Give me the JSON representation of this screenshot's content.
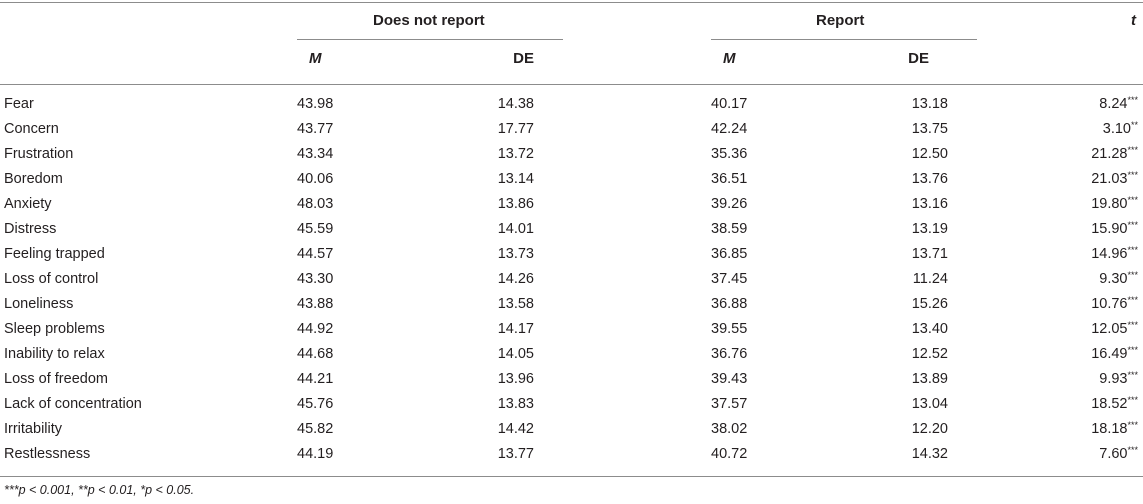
{
  "header": {
    "group1": "Does not report",
    "group2": "Report",
    "t_col": "t",
    "m": "M",
    "de": "DE"
  },
  "rows": [
    {
      "label": "Fear",
      "m1": "43.98",
      "de1": "14.38",
      "m2": "40.17",
      "de2": "13.18",
      "t": "8.24",
      "sig": "***"
    },
    {
      "label": "Concern",
      "m1": "43.77",
      "de1": "17.77",
      "m2": "42.24",
      "de2": "13.75",
      "t": "3.10",
      "sig": "**"
    },
    {
      "label": "Frustration",
      "m1": "43.34",
      "de1": "13.72",
      "m2": "35.36",
      "de2": "12.50",
      "t": "21.28",
      "sig": "***"
    },
    {
      "label": "Boredom",
      "m1": "40.06",
      "de1": "13.14",
      "m2": "36.51",
      "de2": "13.76",
      "t": "21.03",
      "sig": "***"
    },
    {
      "label": "Anxiety",
      "m1": "48.03",
      "de1": "13.86",
      "m2": "39.26",
      "de2": "13.16",
      "t": "19.80",
      "sig": "***"
    },
    {
      "label": "Distress",
      "m1": "45.59",
      "de1": "14.01",
      "m2": "38.59",
      "de2": "13.19",
      "t": "15.90",
      "sig": "***"
    },
    {
      "label": "Feeling trapped",
      "m1": "44.57",
      "de1": "13.73",
      "m2": "36.85",
      "de2": "13.71",
      "t": "14.96",
      "sig": "***"
    },
    {
      "label": "Loss of control",
      "m1": "43.30",
      "de1": "14.26",
      "m2": "37.45",
      "de2": "11.24",
      "t": "9.30",
      "sig": "***"
    },
    {
      "label": "Loneliness",
      "m1": "43.88",
      "de1": "13.58",
      "m2": "36.88",
      "de2": "15.26",
      "t": "10.76",
      "sig": "***"
    },
    {
      "label": "Sleep problems",
      "m1": "44.92",
      "de1": "14.17",
      "m2": "39.55",
      "de2": "13.40",
      "t": "12.05",
      "sig": "***"
    },
    {
      "label": "Inability to relax",
      "m1": "44.68",
      "de1": "14.05",
      "m2": "36.76",
      "de2": "12.52",
      "t": "16.49",
      "sig": "***"
    },
    {
      "label": "Loss of freedom",
      "m1": "44.21",
      "de1": "13.96",
      "m2": "39.43",
      "de2": "13.89",
      "t": "9.93",
      "sig": "***"
    },
    {
      "label": "Lack of concentration",
      "m1": "45.76",
      "de1": "13.83",
      "m2": "37.57",
      "de2": "13.04",
      "t": "18.52",
      "sig": "***"
    },
    {
      "label": "Irritability",
      "m1": "45.82",
      "de1": "14.42",
      "m2": "38.02",
      "de2": "12.20",
      "t": "18.18",
      "sig": "***"
    },
    {
      "label": "Restlessness",
      "m1": "44.19",
      "de1": "13.77",
      "m2": "40.72",
      "de2": "14.32",
      "t": "7.60",
      "sig": "***"
    }
  ],
  "footnote": "***p < 0.001, **p < 0.01, *p < 0.05."
}
